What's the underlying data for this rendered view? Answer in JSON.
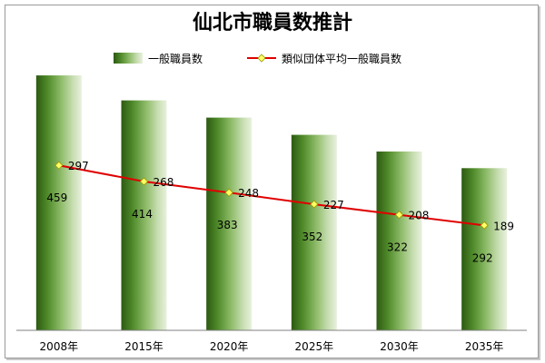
{
  "chart_data": {
    "type": "bar",
    "title": "仙北市職員数推計",
    "categories": [
      "2008年",
      "2015年",
      "2020年",
      "2025年",
      "2030年",
      "2035年"
    ],
    "series": [
      {
        "name": "一般職員数",
        "type": "bar",
        "values": [
          459,
          414,
          383,
          352,
          322,
          292
        ],
        "color": "#3f6e1e"
      },
      {
        "name": "類似団体平均一般職員数",
        "type": "line",
        "values": [
          297,
          268,
          248,
          227,
          208,
          189
        ],
        "color": "#e00000",
        "marker_color": "#ffff66"
      }
    ],
    "ylim": [
      0,
      500
    ],
    "grid": false,
    "legend_position": "top"
  }
}
